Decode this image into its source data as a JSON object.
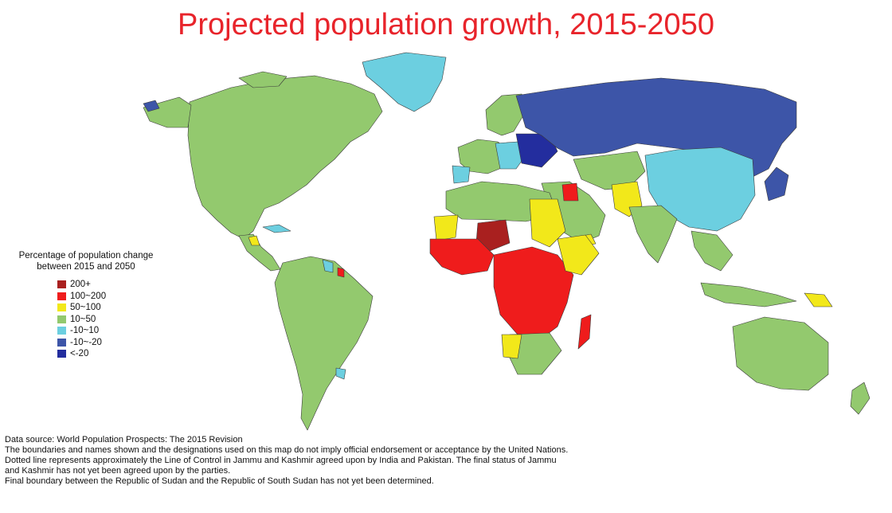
{
  "title": "Projected population growth, 2015-2050",
  "legend": {
    "title_line1": "Percentage of population change",
    "title_line2": "between 2015 and 2050",
    "items": [
      {
        "label": "200+",
        "color": "#a9201f"
      },
      {
        "label": "100~200",
        "color": "#ef1c1c"
      },
      {
        "label": "50~100",
        "color": "#f2e81a"
      },
      {
        "label": "10~50",
        "color": "#93c96e"
      },
      {
        "label": "-10~10",
        "color": "#6ccfe0"
      },
      {
        "label": "-10~-20",
        "color": "#3d55a8"
      },
      {
        "label": "<-20",
        "color": "#232d9e"
      }
    ]
  },
  "notes": [
    "Data source: World Population Prospects: The 2015 Revision",
    "The boundaries and names shown and the designations used on this map do not imply official endorsement or acceptance by the United Nations.",
    "Dotted line represents approximately the Line of Control in Jammu and Kashmir agreed upon by India and Pakistan. The final status of Jammu",
    "and Kashmir has not yet been agreed upon by the parties.",
    "Final boundary between the Republic of Sudan and the Republic of South Sudan has not yet been determined."
  ],
  "colors": {
    "title": "#e8242b",
    "no_data": "#bdbdbd",
    "border": "#3a3a3a"
  }
}
